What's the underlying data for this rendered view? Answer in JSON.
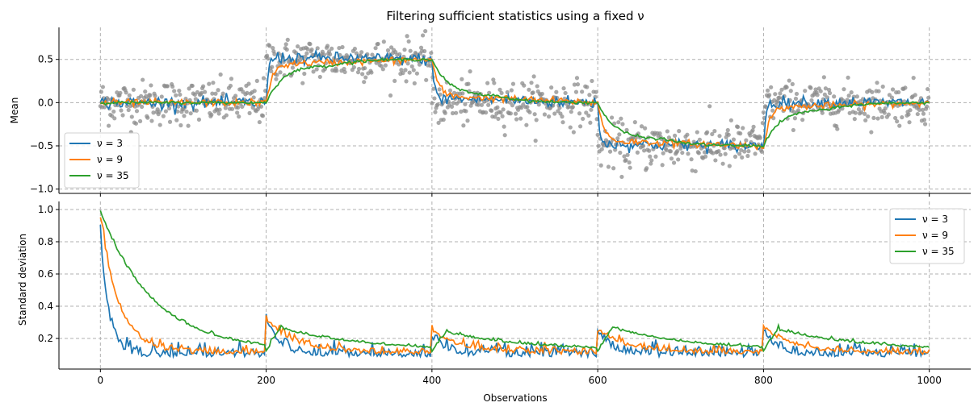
{
  "chart_data": [
    {
      "type": "line",
      "title": "Filtering sufficient statistics using a fixed ν",
      "xlabel": "",
      "ylabel": "Mean",
      "xlim": [
        -50,
        1050
      ],
      "ylim": [
        -1.05,
        0.87
      ],
      "xticks": [
        0,
        200,
        400,
        600,
        800,
        1000
      ],
      "yticks": [
        -1.0,
        -0.5,
        0.0,
        0.5
      ],
      "ytick_labels": [
        "−1.0",
        "−0.5",
        "0.0",
        "0.5"
      ],
      "grid": true,
      "legend_position": "bottom-left",
      "scatter_series": {
        "name": "observations",
        "color": "#8c8c8c",
        "segments": [
          {
            "x_range": [
              0,
              200
            ],
            "mean": 0.0,
            "spread": 0.13
          },
          {
            "x_range": [
              200,
              400
            ],
            "mean": 0.5,
            "spread": 0.12
          },
          {
            "x_range": [
              400,
              600
            ],
            "mean": 0.0,
            "spread": 0.13
          },
          {
            "x_range": [
              600,
              800
            ],
            "mean": -0.5,
            "spread": 0.14
          },
          {
            "x_range": [
              800,
              1000
            ],
            "mean": 0.0,
            "spread": 0.12
          }
        ]
      },
      "series": [
        {
          "name": "ν = 3",
          "nu": 3,
          "color": "#1f77b4",
          "data_points": [
            [
              0,
              0.0
            ],
            [
              200,
              0.0
            ],
            [
              210,
              0.52
            ],
            [
              400,
              0.5
            ],
            [
              410,
              0.05
            ],
            [
              600,
              0.0
            ],
            [
              610,
              -0.48
            ],
            [
              800,
              -0.5
            ],
            [
              810,
              0.0
            ],
            [
              1000,
              0.0
            ]
          ]
        },
        {
          "name": "ν = 9",
          "nu": 9,
          "color": "#ff7f0e",
          "data_points": [
            [
              0,
              0.0
            ],
            [
              200,
              0.0
            ],
            [
              230,
              0.45
            ],
            [
              400,
              0.5
            ],
            [
              430,
              0.07
            ],
            [
              600,
              0.0
            ],
            [
              630,
              -0.45
            ],
            [
              800,
              -0.5
            ],
            [
              830,
              -0.05
            ],
            [
              1000,
              0.0
            ]
          ]
        },
        {
          "name": "ν = 35",
          "nu": 35,
          "color": "#2ca02c",
          "data_points": [
            [
              0,
              0.0
            ],
            [
              200,
              0.0
            ],
            [
              280,
              0.43
            ],
            [
              400,
              0.5
            ],
            [
              480,
              0.08
            ],
            [
              600,
              0.0
            ],
            [
              680,
              -0.42
            ],
            [
              800,
              -0.5
            ],
            [
              880,
              -0.08
            ],
            [
              1000,
              0.0
            ]
          ]
        }
      ]
    },
    {
      "type": "line",
      "title": "",
      "xlabel": "Observations",
      "ylabel": "Standard deviation",
      "xlim": [
        -50,
        1050
      ],
      "ylim": [
        0.01,
        1.05
      ],
      "xticks": [
        0,
        200,
        400,
        600,
        800,
        1000
      ],
      "yticks": [
        0.2,
        0.4,
        0.6,
        0.8,
        1.0
      ],
      "ytick_labels": [
        "0.2",
        "0.4",
        "0.6",
        "0.8",
        "1.0"
      ],
      "grid": true,
      "legend_position": "top-right",
      "series": [
        {
          "name": "ν = 3",
          "nu": 3,
          "color": "#1f77b4",
          "start": 0.87,
          "baseline": 0.1,
          "jumps": [
            [
              200,
              0.33
            ],
            [
              400,
              0.22
            ],
            [
              600,
              0.26
            ],
            [
              800,
              0.26
            ]
          ]
        },
        {
          "name": "ν = 9",
          "nu": 9,
          "color": "#ff7f0e",
          "start": 0.96,
          "baseline": 0.11,
          "jumps": [
            [
              200,
              0.31
            ],
            [
              400,
              0.25
            ],
            [
              600,
              0.25
            ],
            [
              800,
              0.27
            ]
          ]
        },
        {
          "name": "ν = 35",
          "nu": 35,
          "color": "#2ca02c",
          "start": 0.99,
          "baseline": 0.12,
          "jumps": [
            [
              200,
              0.29
            ],
            [
              400,
              0.26
            ],
            [
              600,
              0.29
            ],
            [
              800,
              0.28
            ]
          ]
        }
      ]
    }
  ]
}
